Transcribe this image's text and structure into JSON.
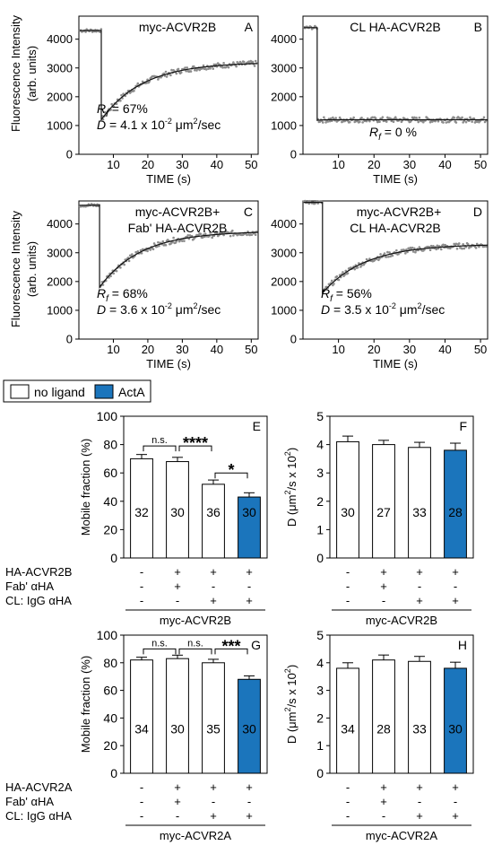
{
  "legend": {
    "items": [
      {
        "label": "no ligand",
        "color": "#ffffff"
      },
      {
        "label": "ActA",
        "color": "#1b75bc"
      }
    ]
  },
  "common": {
    "frap_ylabel_line1": "Fluorescence Intensity",
    "frap_ylabel_line2": "(arb. units)",
    "frap_xlabel": "TIME (s)",
    "sign_plus": "+",
    "sign_minus": "-"
  },
  "colors": {
    "acta": "#1b75bc",
    "data_points": "#8c8c8c",
    "fit": "#111111"
  },
  "chart_data": [
    {
      "id": "A",
      "type": "scatter",
      "letter": "A",
      "title": [
        "myc-ACVR2B"
      ],
      "ylabel": "Fluorescence Intensity (arb. units)",
      "xlabel": "TIME (s)",
      "xlim": [
        0,
        52
      ],
      "ylim": [
        0,
        4800
      ],
      "xticks": [
        10,
        20,
        30,
        40,
        50
      ],
      "yticks": [
        0,
        1000,
        2000,
        3000,
        4000
      ],
      "prebleach": 4300,
      "bleach_time": 6.5,
      "postbleach_min": 1200,
      "recovery_plateau": 3200,
      "recovery_tau": 12,
      "rf_text": "= 67%",
      "d_text": "= 4.1 x 10",
      "d_exp": "-2",
      "d_units": " μm",
      "d_units_exp": "2",
      "d_units_tail": "/sec",
      "series": [
        {
          "name": "",
          "kind": "frap"
        }
      ]
    },
    {
      "id": "B",
      "type": "scatter",
      "letter": "B",
      "title": [
        "CL HA-ACVR2B"
      ],
      "xlabel": "TIME (s)",
      "xlim": [
        0,
        52
      ],
      "ylim": [
        0,
        4800
      ],
      "xticks": [
        10,
        20,
        30,
        40,
        50
      ],
      "yticks": [
        0,
        1000,
        2000,
        3000,
        4000
      ],
      "prebleach": 4400,
      "bleach_time": 4,
      "postbleach_min": 1180,
      "recovery_plateau": 1200,
      "recovery_tau": 1,
      "rf_text": "= 0 %"
    },
    {
      "id": "C",
      "type": "scatter",
      "letter": "C",
      "title": [
        "myc-ACVR2B+",
        "Fab' HA-ACVR2B"
      ],
      "ylabel": "Fluorescence Intensity (arb. units)",
      "xlabel": "TIME (s)",
      "xlim": [
        0,
        52
      ],
      "ylim": [
        0,
        4800
      ],
      "xticks": [
        10,
        20,
        30,
        40,
        50
      ],
      "yticks": [
        0,
        1000,
        2000,
        3000,
        4000
      ],
      "prebleach": 4650,
      "bleach_time": 6,
      "postbleach_min": 1800,
      "recovery_plateau": 3750,
      "recovery_tau": 12,
      "rf_text": "= 68%",
      "d_text": "= 3.6 x 10",
      "d_exp": "-2",
      "d_units": " μm",
      "d_units_exp": "2",
      "d_units_tail": "/sec"
    },
    {
      "id": "D",
      "type": "scatter",
      "letter": "D",
      "title": [
        "myc-ACVR2B+",
        "CL HA-ACVR2B"
      ],
      "xlabel": "TIME (s)",
      "xlim": [
        0,
        52
      ],
      "ylim": [
        0,
        4800
      ],
      "xticks": [
        10,
        20,
        30,
        40,
        50
      ],
      "yticks": [
        0,
        1000,
        2000,
        3000,
        4000
      ],
      "prebleach": 4750,
      "bleach_time": 5.5,
      "postbleach_min": 1600,
      "recovery_plateau": 3300,
      "recovery_tau": 12,
      "rf_text": "= 56%",
      "d_text": "= 3.5 x 10",
      "d_exp": "-2",
      "d_units": " μm",
      "d_units_exp": "2",
      "d_units_tail": "/sec"
    },
    {
      "id": "E",
      "type": "bar",
      "letter": "E",
      "ylabel": "Mobile fraction (%)",
      "ylim": [
        0,
        100
      ],
      "yticks": [
        0,
        20,
        40,
        60,
        80,
        100
      ],
      "values": [
        70,
        68,
        52,
        43
      ],
      "errors": [
        3,
        3,
        3,
        3
      ],
      "n": [
        "32",
        "30",
        "36",
        "30"
      ],
      "fill": [
        "no ligand",
        "no ligand",
        "no ligand",
        "ActA"
      ],
      "brackets": [
        {
          "from": 0,
          "to": 1,
          "label": "n.s.",
          "level": 79
        },
        {
          "from": 1,
          "to": 2,
          "label": "****",
          "level": 79
        },
        {
          "from": 2,
          "to": 3,
          "label": "*",
          "level": 60
        }
      ],
      "rows": [
        {
          "label": "HA-ACVR2B",
          "signs": [
            "-",
            "+",
            "+",
            "+"
          ]
        },
        {
          "label": "Fab' αHA",
          "signs": [
            "-",
            "+",
            "-",
            "-"
          ]
        },
        {
          "label": "CL: IgG αHA",
          "signs": [
            "-",
            "-",
            "+",
            "+"
          ]
        }
      ],
      "group_label": "myc-ACVR2B"
    },
    {
      "id": "F",
      "type": "bar",
      "letter": "F",
      "ylabel": "D (μm²/s x 10²)",
      "ylabel_parts": [
        "D (",
        "μm",
        "2",
        "/s x 10",
        "2",
        ")"
      ],
      "ylim": [
        0,
        5
      ],
      "yticks": [
        0,
        1,
        2,
        3,
        4,
        5
      ],
      "values": [
        4.1,
        4.0,
        3.9,
        3.8
      ],
      "errors": [
        0.2,
        0.15,
        0.18,
        0.25
      ],
      "n": [
        "30",
        "27",
        "33",
        "28"
      ],
      "fill": [
        "no ligand",
        "no ligand",
        "no ligand",
        "ActA"
      ],
      "rows": [
        {
          "label": "",
          "signs": [
            "-",
            "+",
            "+",
            "+"
          ]
        },
        {
          "label": "",
          "signs": [
            "-",
            "+",
            "-",
            "-"
          ]
        },
        {
          "label": "",
          "signs": [
            "-",
            "-",
            "+",
            "+"
          ]
        }
      ],
      "group_label": "myc-ACVR2B"
    },
    {
      "id": "G",
      "type": "bar",
      "letter": "G",
      "ylabel": "Mobile fraction (%)",
      "ylim": [
        0,
        100
      ],
      "yticks": [
        0,
        20,
        40,
        60,
        80,
        100
      ],
      "values": [
        82,
        83,
        80,
        68
      ],
      "errors": [
        2,
        2.5,
        2.5,
        2.5
      ],
      "n": [
        "34",
        "30",
        "35",
        "30"
      ],
      "fill": [
        "no ligand",
        "no ligand",
        "no ligand",
        "ActA"
      ],
      "brackets": [
        {
          "from": 0,
          "to": 1,
          "label": "n.s.",
          "level": 90
        },
        {
          "from": 1,
          "to": 2,
          "label": "n.s.",
          "level": 90
        },
        {
          "from": 2,
          "to": 3,
          "label": "***",
          "level": 90
        }
      ],
      "rows": [
        {
          "label": "HA-ACVR2A",
          "signs": [
            "-",
            "+",
            "+",
            "+"
          ]
        },
        {
          "label": "Fab' αHA",
          "signs": [
            "-",
            "+",
            "-",
            "-"
          ]
        },
        {
          "label": "CL: IgG αHA",
          "signs": [
            "-",
            "-",
            "+",
            "+"
          ]
        }
      ],
      "group_label": "myc-ACVR2A"
    },
    {
      "id": "H",
      "type": "bar",
      "letter": "H",
      "ylabel": "D (μm²/s x 10²)",
      "ylabel_parts": [
        "D (",
        "μm",
        "2",
        "/s x 10",
        "2",
        ")"
      ],
      "ylim": [
        0,
        5
      ],
      "yticks": [
        0,
        1,
        2,
        3,
        4,
        5
      ],
      "values": [
        3.8,
        4.1,
        4.05,
        3.8
      ],
      "errors": [
        0.2,
        0.18,
        0.18,
        0.22
      ],
      "n": [
        "34",
        "28",
        "33",
        "30"
      ],
      "fill": [
        "no ligand",
        "no ligand",
        "no ligand",
        "ActA"
      ],
      "rows": [
        {
          "label": "",
          "signs": [
            "-",
            "+",
            "+",
            "+"
          ]
        },
        {
          "label": "",
          "signs": [
            "-",
            "+",
            "-",
            "-"
          ]
        },
        {
          "label": "",
          "signs": [
            "-",
            "-",
            "+",
            "+"
          ]
        }
      ],
      "group_label": "myc-ACVR2A"
    }
  ]
}
